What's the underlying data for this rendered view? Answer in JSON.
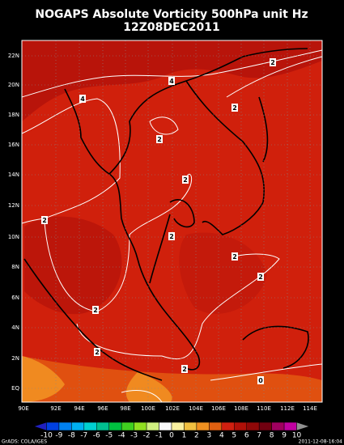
{
  "header": {
    "title": "NOGAPS Absolute Vorticity 500hPa unit Hz",
    "subtitle": "12Z08DEC2011"
  },
  "map": {
    "lat_labels": [
      "22N",
      "20N",
      "18N",
      "16N",
      "14N",
      "12N",
      "10N",
      "8N",
      "6N",
      "4N",
      "2N",
      "EQ"
    ],
    "lon_labels": [
      "90E",
      "92E",
      "94E",
      "96E",
      "98E",
      "100E",
      "102E",
      "104E",
      "106E",
      "108E",
      "110E",
      "112E",
      "114E"
    ],
    "contour_labels": [
      "2",
      "4",
      "4",
      "2",
      "2",
      "2",
      "2",
      "2",
      "2",
      "2",
      "2",
      "2",
      "2",
      "0"
    ]
  },
  "colorbar": {
    "labels": [
      -10,
      -9,
      -8,
      -7,
      -6,
      -5,
      -4,
      -3,
      -2,
      -1,
      0,
      1,
      2,
      3,
      4,
      5,
      6,
      7,
      8,
      9,
      10
    ],
    "colors": [
      "#2020c0",
      "#0040e0",
      "#0080f0",
      "#00b0f0",
      "#00d0d0",
      "#00c090",
      "#00c040",
      "#40d020",
      "#90e020",
      "#d0f080",
      "#f8f8f8",
      "#f8f0a0",
      "#f0c040",
      "#f09020",
      "#e06010",
      "#d02010",
      "#b01008",
      "#900808",
      "#700010",
      "#a00060",
      "#c000a0",
      "#909090"
    ]
  },
  "footer": {
    "left": "GrADS: COLA/IGES",
    "right": "2011-12-08-16:04"
  }
}
